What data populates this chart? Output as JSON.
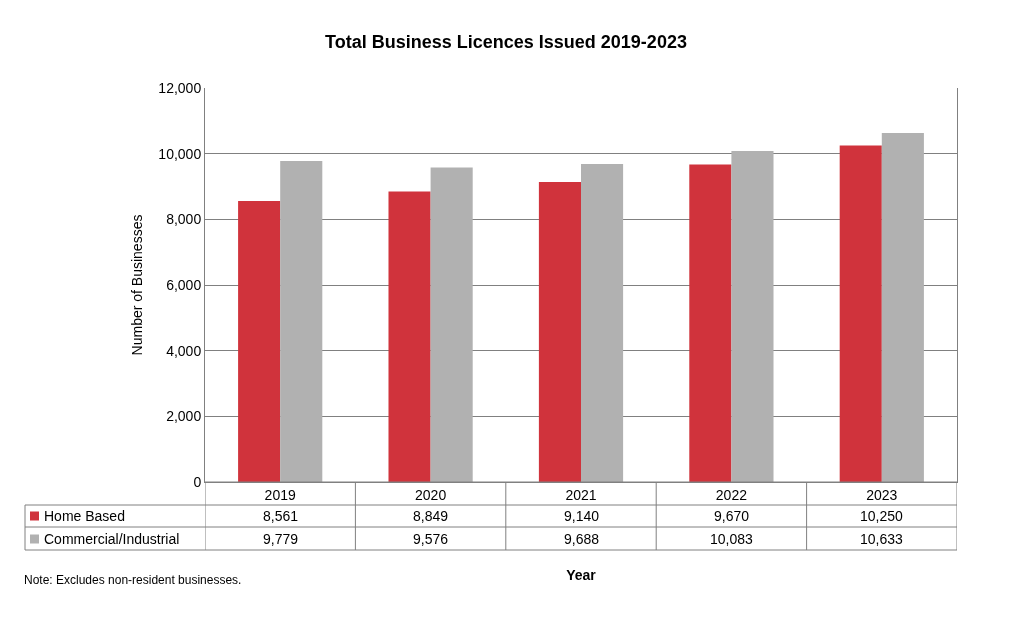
{
  "chart_data": {
    "type": "bar",
    "title": "Total Business Licences Issued 2019-2023",
    "xlabel": "Year",
    "ylabel": "Number of Businesses",
    "categories": [
      "2019",
      "2020",
      "2021",
      "2022",
      "2023"
    ],
    "series": [
      {
        "name": "Home Based",
        "color": "#d0333c",
        "values": [
          8561,
          8849,
          9140,
          9670,
          10250
        ],
        "value_labels": [
          "8,561",
          "8,849",
          "9,140",
          "9,670",
          "10,250"
        ]
      },
      {
        "name": "Commercial/Industrial",
        "color": "#b1b1b1",
        "values": [
          9779,
          9576,
          9688,
          10083,
          10633
        ],
        "value_labels": [
          "9,779",
          "9,576",
          "9,688",
          "10,083",
          "10,633"
        ]
      }
    ],
    "ylim": [
      0,
      12000
    ],
    "yticks": [
      {
        "value": 0,
        "label": "0"
      },
      {
        "value": 2000,
        "label": "2,000"
      },
      {
        "value": 4000,
        "label": "4,000"
      },
      {
        "value": 6000,
        "label": "6,000"
      },
      {
        "value": 8000,
        "label": "8,000"
      },
      {
        "value": 10000,
        "label": "10,000"
      },
      {
        "value": 12000,
        "label": "12,000"
      }
    ],
    "grid": "y",
    "legend": "bottom left",
    "annotations": [
      "Note: Excludes non-resident businesses."
    ]
  }
}
